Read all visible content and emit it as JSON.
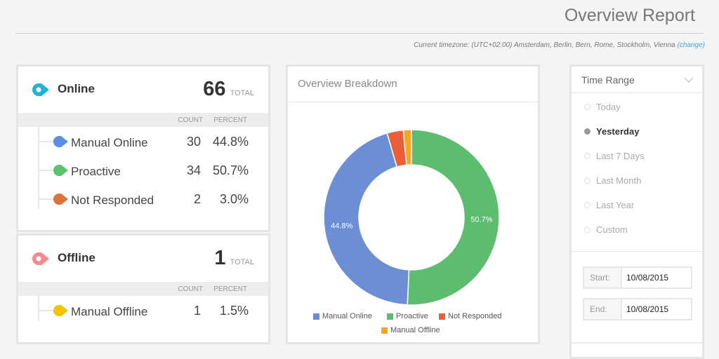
{
  "header": {
    "title": "Overview Report",
    "timezone": "Current timezone: (UTC+02:00) Amsterdam, Berlin, Bern, Rome, Stockholm, Vienna",
    "change_link": "(change)"
  },
  "online": {
    "label": "Online",
    "total": "66",
    "total_label": "TOTAL",
    "count_header": "COUNT",
    "percent_header": "PERCENT",
    "color": "#1fb3d8",
    "rows": [
      {
        "label": "Manual Online",
        "count": "30",
        "percent": "44.8%",
        "color": "#5b8fe6"
      },
      {
        "label": "Proactive",
        "count": "34",
        "percent": "50.7%",
        "color": "#5cc46e"
      },
      {
        "label": "Not Responded",
        "count": "2",
        "percent": "3.0%",
        "color": "#e0733a"
      }
    ]
  },
  "offline": {
    "label": "Offline",
    "total": "1",
    "total_label": "TOTAL",
    "count_header": "COUNT",
    "percent_header": "PERCENT",
    "color": "#f48a8a",
    "rows": [
      {
        "label": "Manual Offline",
        "count": "1",
        "percent": "1.5%",
        "color": "#f5c400"
      }
    ]
  },
  "breakdown": {
    "title": "Overview Breakdown"
  },
  "chart_data": {
    "type": "pie",
    "donut": true,
    "categories": [
      "Proactive",
      "Manual Online",
      "Not Responded",
      "Manual Offline"
    ],
    "values": [
      34,
      30,
      2,
      1
    ],
    "colors": [
      "#5cbd6e",
      "#6b8ed4",
      "#ea5f3a",
      "#f7a823"
    ],
    "data_labels": [
      "50.7%",
      "44.8%",
      "",
      ""
    ],
    "legend": [
      "Manual Online",
      "Proactive",
      "Not Responded",
      "Manual Offline"
    ],
    "legend_colors": [
      "#6b8ed4",
      "#5cbd6e",
      "#ea5f3a",
      "#f7a823"
    ],
    "legend_placement": "bottom"
  },
  "time_range": {
    "title": "Time Range",
    "options": [
      "Today",
      "Yesterday",
      "Last 7 Days",
      "Last Month",
      "Last Year",
      "Custom"
    ],
    "selected": "Yesterday",
    "start_label": "Start:",
    "start_value": "10/08/2015",
    "end_label": "End:",
    "end_value": "10/08/2015"
  }
}
